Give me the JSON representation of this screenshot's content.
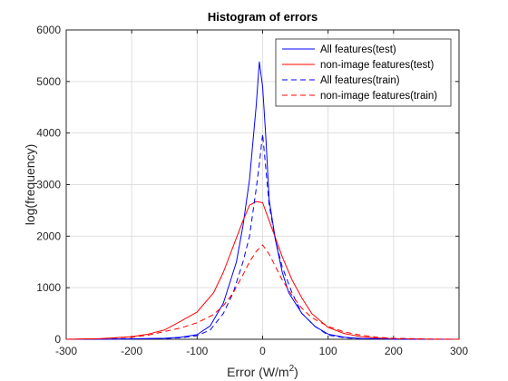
{
  "chart_data": {
    "type": "line",
    "title": "Histogram of errors",
    "xlabel": "Error (W/m",
    "xlabel_sup": "2",
    "xlabel_end": ")",
    "ylabel": "log(frequency)",
    "xlim": [
      -300,
      300
    ],
    "ylim": [
      0,
      6000
    ],
    "xticks": [
      -300,
      -200,
      -100,
      0,
      100,
      200,
      300
    ],
    "yticks": [
      0,
      1000,
      2000,
      3000,
      4000,
      5000,
      6000
    ],
    "grid": true,
    "legend_position": "top-right",
    "series": [
      {
        "name": "All features(test)",
        "color": "#0000ff",
        "style": "solid",
        "x": [
          -300,
          -250,
          -200,
          -150,
          -125,
          -100,
          -80,
          -60,
          -40,
          -30,
          -20,
          -10,
          -5,
          0,
          5,
          10,
          20,
          30,
          40,
          60,
          80,
          100,
          125,
          150,
          200,
          250,
          300
        ],
        "y": [
          0,
          2,
          8,
          20,
          40,
          90,
          260,
          700,
          1500,
          2200,
          3100,
          4500,
          5380,
          4900,
          3900,
          2700,
          1900,
          1300,
          900,
          500,
          250,
          100,
          40,
          15,
          4,
          1,
          0
        ]
      },
      {
        "name": "non-image features(test)",
        "color": "#ff0000",
        "style": "solid",
        "x": [
          -300,
          -250,
          -200,
          -175,
          -150,
          -125,
          -100,
          -75,
          -60,
          -45,
          -30,
          -20,
          -10,
          0,
          10,
          20,
          30,
          45,
          60,
          75,
          100,
          125,
          150,
          175,
          200,
          250,
          300
        ],
        "y": [
          0,
          10,
          50,
          100,
          180,
          350,
          530,
          900,
          1300,
          1800,
          2300,
          2600,
          2670,
          2650,
          2300,
          1950,
          1600,
          1150,
          800,
          500,
          230,
          110,
          50,
          25,
          10,
          2,
          0
        ]
      },
      {
        "name": "All features(train)",
        "color": "#0000ff",
        "style": "dashed",
        "x": [
          -300,
          -250,
          -200,
          -150,
          -125,
          -100,
          -80,
          -60,
          -45,
          -30,
          -20,
          -10,
          -5,
          0,
          5,
          10,
          20,
          30,
          45,
          60,
          80,
          100,
          125,
          150,
          200,
          250,
          300
        ],
        "y": [
          0,
          2,
          6,
          15,
          30,
          70,
          180,
          500,
          900,
          1500,
          2000,
          2900,
          3400,
          3980,
          3300,
          2600,
          1900,
          1400,
          900,
          500,
          250,
          80,
          30,
          10,
          3,
          1,
          0
        ]
      },
      {
        "name": "non-image features(train)",
        "color": "#ff0000",
        "style": "dashed",
        "x": [
          -300,
          -250,
          -200,
          -175,
          -150,
          -125,
          -100,
          -75,
          -60,
          -45,
          -30,
          -20,
          -10,
          0,
          10,
          20,
          30,
          45,
          60,
          75,
          100,
          125,
          150,
          175,
          200,
          250,
          300
        ],
        "y": [
          0,
          10,
          40,
          80,
          150,
          220,
          320,
          480,
          650,
          900,
          1250,
          1500,
          1700,
          1830,
          1650,
          1400,
          1150,
          850,
          600,
          420,
          250,
          140,
          80,
          40,
          20,
          5,
          0
        ]
      }
    ]
  }
}
